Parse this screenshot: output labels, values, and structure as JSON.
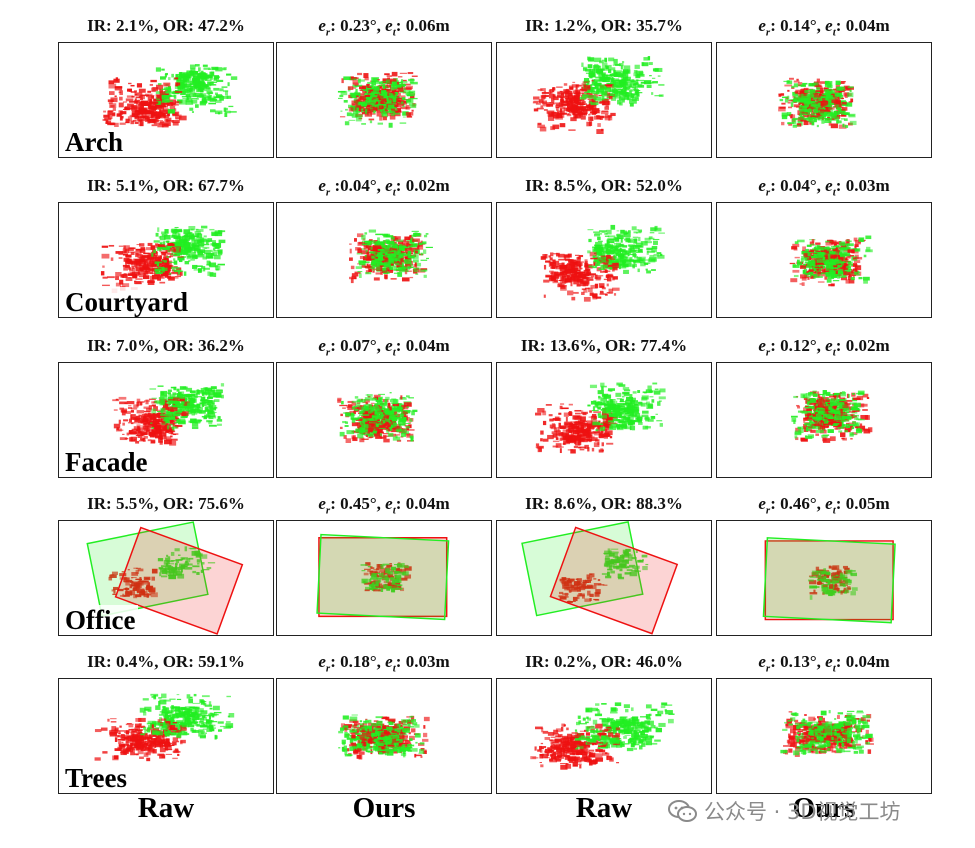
{
  "rows": [
    {
      "scene": "Arch",
      "captions": [
        {
          "kind": "ratio",
          "text": "IR: 2.1%, OR: 47.2%"
        },
        {
          "kind": "error",
          "er": "0.23°",
          "et": "0.06m",
          "sep": ": "
        },
        {
          "kind": "ratio",
          "text": "IR: 1.2%, OR: 35.7%"
        },
        {
          "kind": "error",
          "er": "0.14°",
          "et": "0.04m",
          "sep": ": "
        }
      ]
    },
    {
      "scene": "Courtyard",
      "captions": [
        {
          "kind": "ratio",
          "text": "IR: 5.1%, OR: 67.7%"
        },
        {
          "kind": "error",
          "er": "0.04°",
          "et": "0.02m",
          "sep": " :"
        },
        {
          "kind": "ratio",
          "text": "IR: 8.5%, OR: 52.0%"
        },
        {
          "kind": "error",
          "er": "0.04°",
          "et": "0.03m",
          "sep": ": "
        }
      ]
    },
    {
      "scene": "Facade",
      "captions": [
        {
          "kind": "ratio",
          "text": "IR: 7.0%, OR: 36.2%"
        },
        {
          "kind": "error",
          "er": "0.07°",
          "et": "0.04m",
          "sep": ": "
        },
        {
          "kind": "ratio",
          "text": "IR: 13.6%, OR: 77.4%"
        },
        {
          "kind": "error",
          "er": "0.12°",
          "et": "0.02m",
          "sep": ": "
        }
      ]
    },
    {
      "scene": "Office",
      "captions": [
        {
          "kind": "ratio",
          "text": "IR: 5.5%, OR: 75.6%"
        },
        {
          "kind": "error",
          "er": "0.45°",
          "et": "0.04m",
          "sep": ": "
        },
        {
          "kind": "ratio",
          "text": "IR: 8.6%,  OR: 88.3%"
        },
        {
          "kind": "error",
          "er": "0.46°",
          "et": "0.05m",
          "sep": ": "
        }
      ]
    },
    {
      "scene": "Trees",
      "captions": [
        {
          "kind": "ratio",
          "text": "IR: 0.4%, OR: 59.1%"
        },
        {
          "kind": "error",
          "er": "0.18°",
          "et": "0.03m",
          "sep": ": "
        },
        {
          "kind": "ratio",
          "text": "IR: 0.2%, OR: 46.0%"
        },
        {
          "kind": "error",
          "er": "0.13°",
          "et": "0.04m",
          "sep": ": "
        }
      ]
    }
  ],
  "column_labels": [
    "Raw",
    "Ours",
    "Raw",
    "Ours"
  ],
  "error_symbols": {
    "er_base": "e",
    "er_sub": "r",
    "et_base": "e",
    "et_sub": "t"
  },
  "colors": {
    "source_cloud": "#ee1111",
    "target_cloud": "#22ee22",
    "frame": "#222222"
  },
  "watermark": {
    "text": "公众号 · 3D视觉工坊",
    "icon": "wechat-icon"
  }
}
